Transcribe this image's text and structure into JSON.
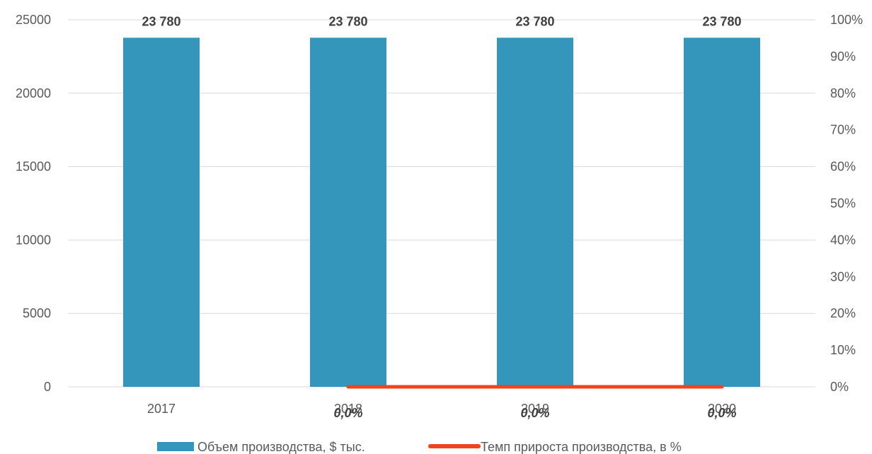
{
  "chart_data": {
    "type": "bar",
    "categories": [
      "2017",
      "2018",
      "2019",
      "2020"
    ],
    "series": [
      {
        "name": "Объем производства, $ тыс.",
        "kind": "bar",
        "axis": "left",
        "values": [
          23780,
          23780,
          23780,
          23780
        ],
        "data_labels": [
          "23 780",
          "23 780",
          "23 780",
          "23 780"
        ],
        "color": "#3596bc"
      },
      {
        "name": "Темп прироста производства, в %",
        "kind": "line",
        "axis": "right",
        "values": [
          null,
          0,
          0,
          0
        ],
        "data_labels": [
          null,
          "0,0%",
          "0,0%",
          "0,0%"
        ],
        "color": "#f0431f"
      }
    ],
    "ylim": [
      0,
      25000
    ],
    "yticks": [
      "0",
      "5000",
      "10000",
      "15000",
      "20000",
      "25000"
    ],
    "y2lim": [
      0,
      100
    ],
    "y2ticks": [
      "0%",
      "10%",
      "20%",
      "30%",
      "40%",
      "50%",
      "60%",
      "70%",
      "80%",
      "90%",
      "100%"
    ],
    "grid": true,
    "legend": "bottom"
  }
}
